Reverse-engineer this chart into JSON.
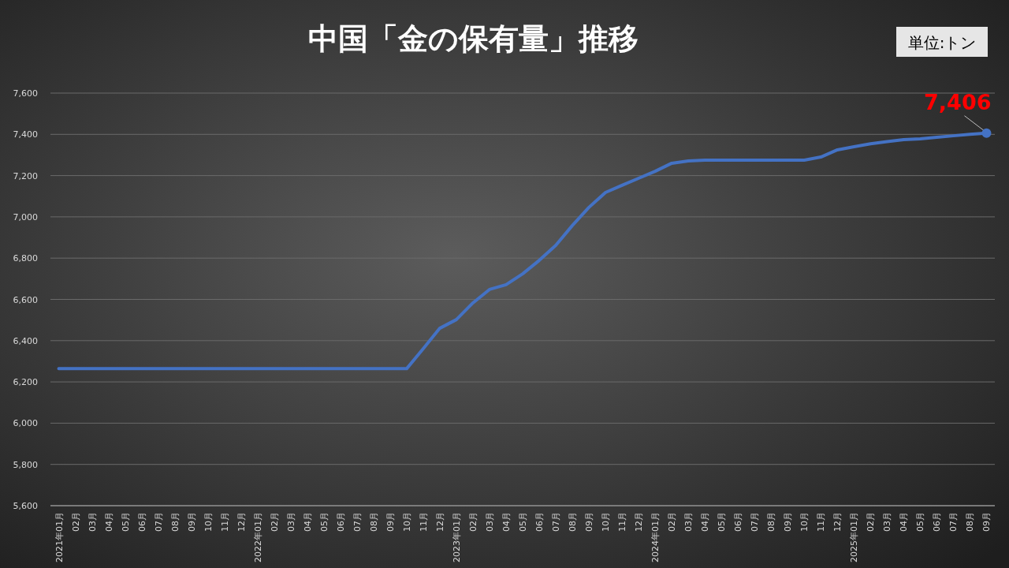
{
  "chart_data": {
    "type": "line",
    "title": "中国「金の保有量」推移",
    "annotations": [
      "単位:トン"
    ],
    "categories": [
      "2021年01月",
      "02月",
      "03月",
      "04月",
      "05月",
      "06月",
      "07月",
      "08月",
      "09月",
      "10月",
      "11月",
      "12月",
      "2022年01月",
      "02月",
      "03月",
      "04月",
      "05月",
      "06月",
      "07月",
      "08月",
      "09月",
      "10月",
      "11月",
      "12月",
      "2023年01月",
      "02月",
      "03月",
      "04月",
      "05月",
      "06月",
      "07月",
      "08月",
      "09月",
      "10月",
      "11月",
      "12月",
      "2024年01月",
      "02月",
      "03月",
      "04月",
      "05月",
      "06月",
      "07月",
      "08月",
      "09月",
      "10月",
      "11月",
      "12月",
      "2025年01月",
      "02月",
      "03月",
      "04月",
      "05月",
      "06月",
      "07月",
      "08月",
      "09月"
    ],
    "series": [
      {
        "color": "#4472c4",
        "values": [
          6264,
          6264,
          6264,
          6264,
          6264,
          6264,
          6264,
          6264,
          6264,
          6264,
          6264,
          6264,
          6264,
          6264,
          6264,
          6264,
          6264,
          6264,
          6264,
          6264,
          6264,
          6264,
          6361,
          6460,
          6502,
          6583,
          6648,
          6671,
          6724,
          6789,
          6862,
          6958,
          7046,
          7118,
          7153,
          7187,
          7221,
          7260,
          7271,
          7275,
          7275,
          7275,
          7275,
          7275,
          7275,
          7275,
          7290,
          7325,
          7340,
          7354,
          7365,
          7374,
          7378,
          7386,
          7393,
          7400,
          7406
        ],
        "value_labels": [
          null,
          null,
          null,
          null,
          null,
          null,
          null,
          null,
          null,
          null,
          null,
          null,
          null,
          null,
          null,
          null,
          null,
          null,
          null,
          null,
          null,
          null,
          null,
          null,
          null,
          null,
          null,
          null,
          null,
          null,
          null,
          null,
          null,
          null,
          null,
          null,
          null,
          null,
          null,
          null,
          null,
          null,
          null,
          null,
          null,
          null,
          null,
          null,
          null,
          null,
          null,
          null,
          null,
          null,
          null,
          null,
          "7,406"
        ]
      }
    ],
    "ylim": [
      5600,
      7600
    ],
    "yticks": [
      {
        "value": 5600,
        "label": "5,600"
      },
      {
        "value": 5800,
        "label": "5,800"
      },
      {
        "value": 6000,
        "label": "6,000"
      },
      {
        "value": 6200,
        "label": "6,200"
      },
      {
        "value": 6400,
        "label": "6,400"
      },
      {
        "value": 6600,
        "label": "6,600"
      },
      {
        "value": 6800,
        "label": "6,800"
      },
      {
        "value": 7000,
        "label": "7,000"
      },
      {
        "value": 7200,
        "label": "7,200"
      },
      {
        "value": 7400,
        "label": "7,400"
      },
      {
        "value": 7600,
        "label": "7,600"
      }
    ],
    "grid": "y",
    "line_style": "solid"
  }
}
